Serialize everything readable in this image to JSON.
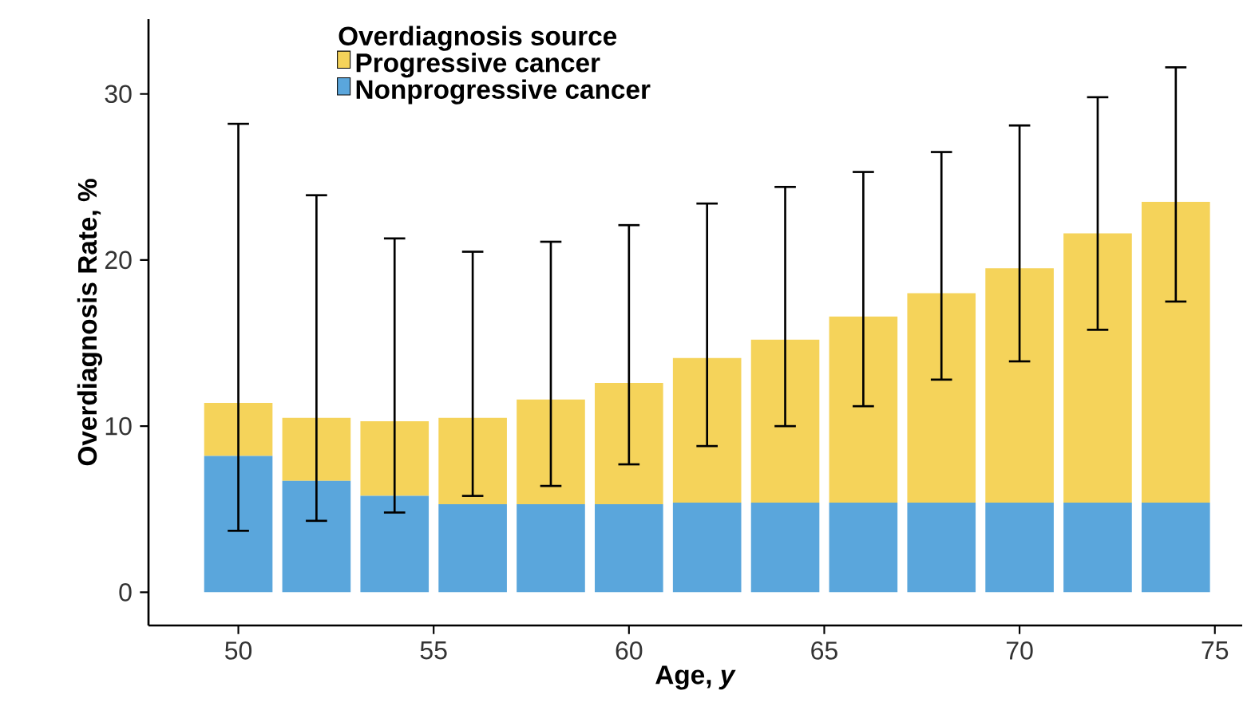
{
  "chart_data": {
    "type": "bar",
    "stacked": true,
    "xlabel": "Age, *y*",
    "ylabel": "Overdiagnosis Rate, %",
    "legend_title": "Overdiagnosis source",
    "x": [
      50,
      52,
      54,
      56,
      58,
      60,
      62,
      64,
      66,
      68,
      70,
      72,
      74
    ],
    "series": [
      {
        "name": "Nonprogressive cancer",
        "color": "#5aa6dc",
        "values": [
          8.2,
          6.7,
          5.8,
          5.3,
          5.3,
          5.3,
          5.4,
          5.4,
          5.4,
          5.4,
          5.4,
          5.4,
          5.4
        ]
      },
      {
        "name": "Progressive cancer",
        "color": "#f5d35a",
        "values": [
          3.2,
          3.8,
          4.5,
          5.2,
          6.3,
          7.3,
          8.7,
          9.8,
          11.2,
          12.6,
          14.1,
          16.2,
          18.1
        ],
        "errors": [
          [
            3.7,
            28.2
          ],
          [
            4.3,
            23.9
          ],
          [
            4.8,
            21.3
          ],
          [
            5.8,
            20.5
          ],
          [
            6.4,
            21.1
          ],
          [
            7.7,
            22.1
          ],
          [
            8.8,
            23.4
          ],
          [
            10.0,
            24.4
          ],
          [
            11.2,
            25.3
          ],
          [
            12.8,
            26.5
          ],
          [
            13.9,
            28.1
          ],
          [
            15.8,
            29.8
          ],
          [
            17.5,
            31.6
          ]
        ]
      }
    ],
    "xlim": [
      47.7,
      75.7
    ],
    "ylim": [
      -2,
      34.5
    ],
    "xticks": [
      50,
      55,
      60,
      65,
      70,
      75
    ],
    "yticks": [
      0,
      10,
      20,
      30
    ],
    "grid": false,
    "legend": "top left"
  }
}
